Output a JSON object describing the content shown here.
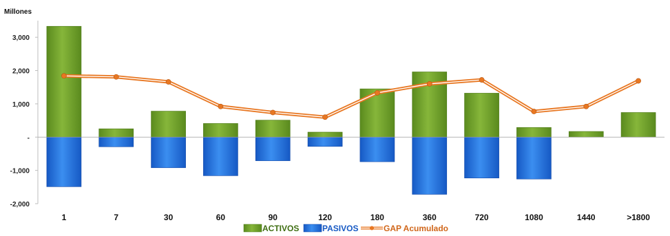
{
  "chart_data": {
    "type": "bar",
    "unit_label": "Millones",
    "categories": [
      "1",
      "7",
      "30",
      "60",
      "90",
      "120",
      "180",
      "360",
      "720",
      "1080",
      "1440",
      ">1800"
    ],
    "series": [
      {
        "name": "ACTIVOS",
        "kind": "bar",
        "color": "#6e9b2a",
        "values": [
          3330,
          250,
          780,
          410,
          510,
          150,
          1450,
          1960,
          1320,
          290,
          170,
          740
        ]
      },
      {
        "name": "PASIVOS",
        "kind": "bar",
        "color": "#1f6fd6",
        "values": [
          -1490,
          -290,
          -920,
          -1160,
          -710,
          -280,
          -740,
          -1720,
          -1230,
          -1260,
          0,
          0
        ]
      },
      {
        "name": "GAP Acumulado",
        "kind": "line",
        "color": "#e87722",
        "values": [
          1840,
          1810,
          1660,
          920,
          740,
          600,
          1330,
          1600,
          1720,
          770,
          920,
          1690
        ]
      }
    ],
    "ylim": [
      -2000,
      3500
    ],
    "yticks": [
      -2000,
      -1000,
      0,
      1000,
      2000,
      3000
    ],
    "ytick_labels": [
      "-2,000",
      "-1,000",
      "-",
      "1,000",
      "2,000",
      "3,000"
    ],
    "legend_position": "bottom-center",
    "grid": false
  }
}
